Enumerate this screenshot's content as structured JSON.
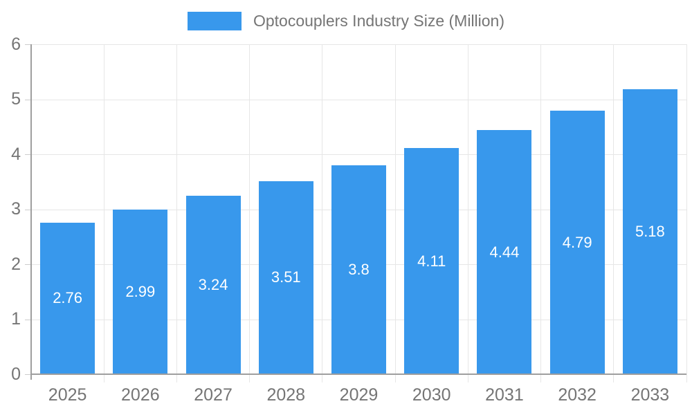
{
  "chart_data": {
    "type": "bar",
    "title": "Optocouplers Industry Size (Million)",
    "categories": [
      "2025",
      "2026",
      "2027",
      "2028",
      "2029",
      "2030",
      "2031",
      "2032",
      "2033"
    ],
    "values": [
      2.76,
      2.99,
      3.24,
      3.51,
      3.8,
      4.11,
      4.44,
      4.79,
      5.18
    ],
    "value_labels": [
      "2.76",
      "2.99",
      "3.24",
      "3.51",
      "3.8",
      "4.11",
      "4.44",
      "4.79",
      "5.18"
    ],
    "xlabel": "",
    "ylabel": "",
    "ylim": [
      0,
      6
    ],
    "yticks": [
      0,
      1,
      2,
      3,
      4,
      5,
      6
    ],
    "grid": true,
    "legend_position": "top-center",
    "value_label_position": "inside-center"
  },
  "colors": {
    "bar": "#3898ec",
    "gridline": "#e6e6e6",
    "axis_line": "#9e9e9e",
    "tick_text": "#757575",
    "value_text": "#ffffff",
    "background": "#ffffff"
  }
}
